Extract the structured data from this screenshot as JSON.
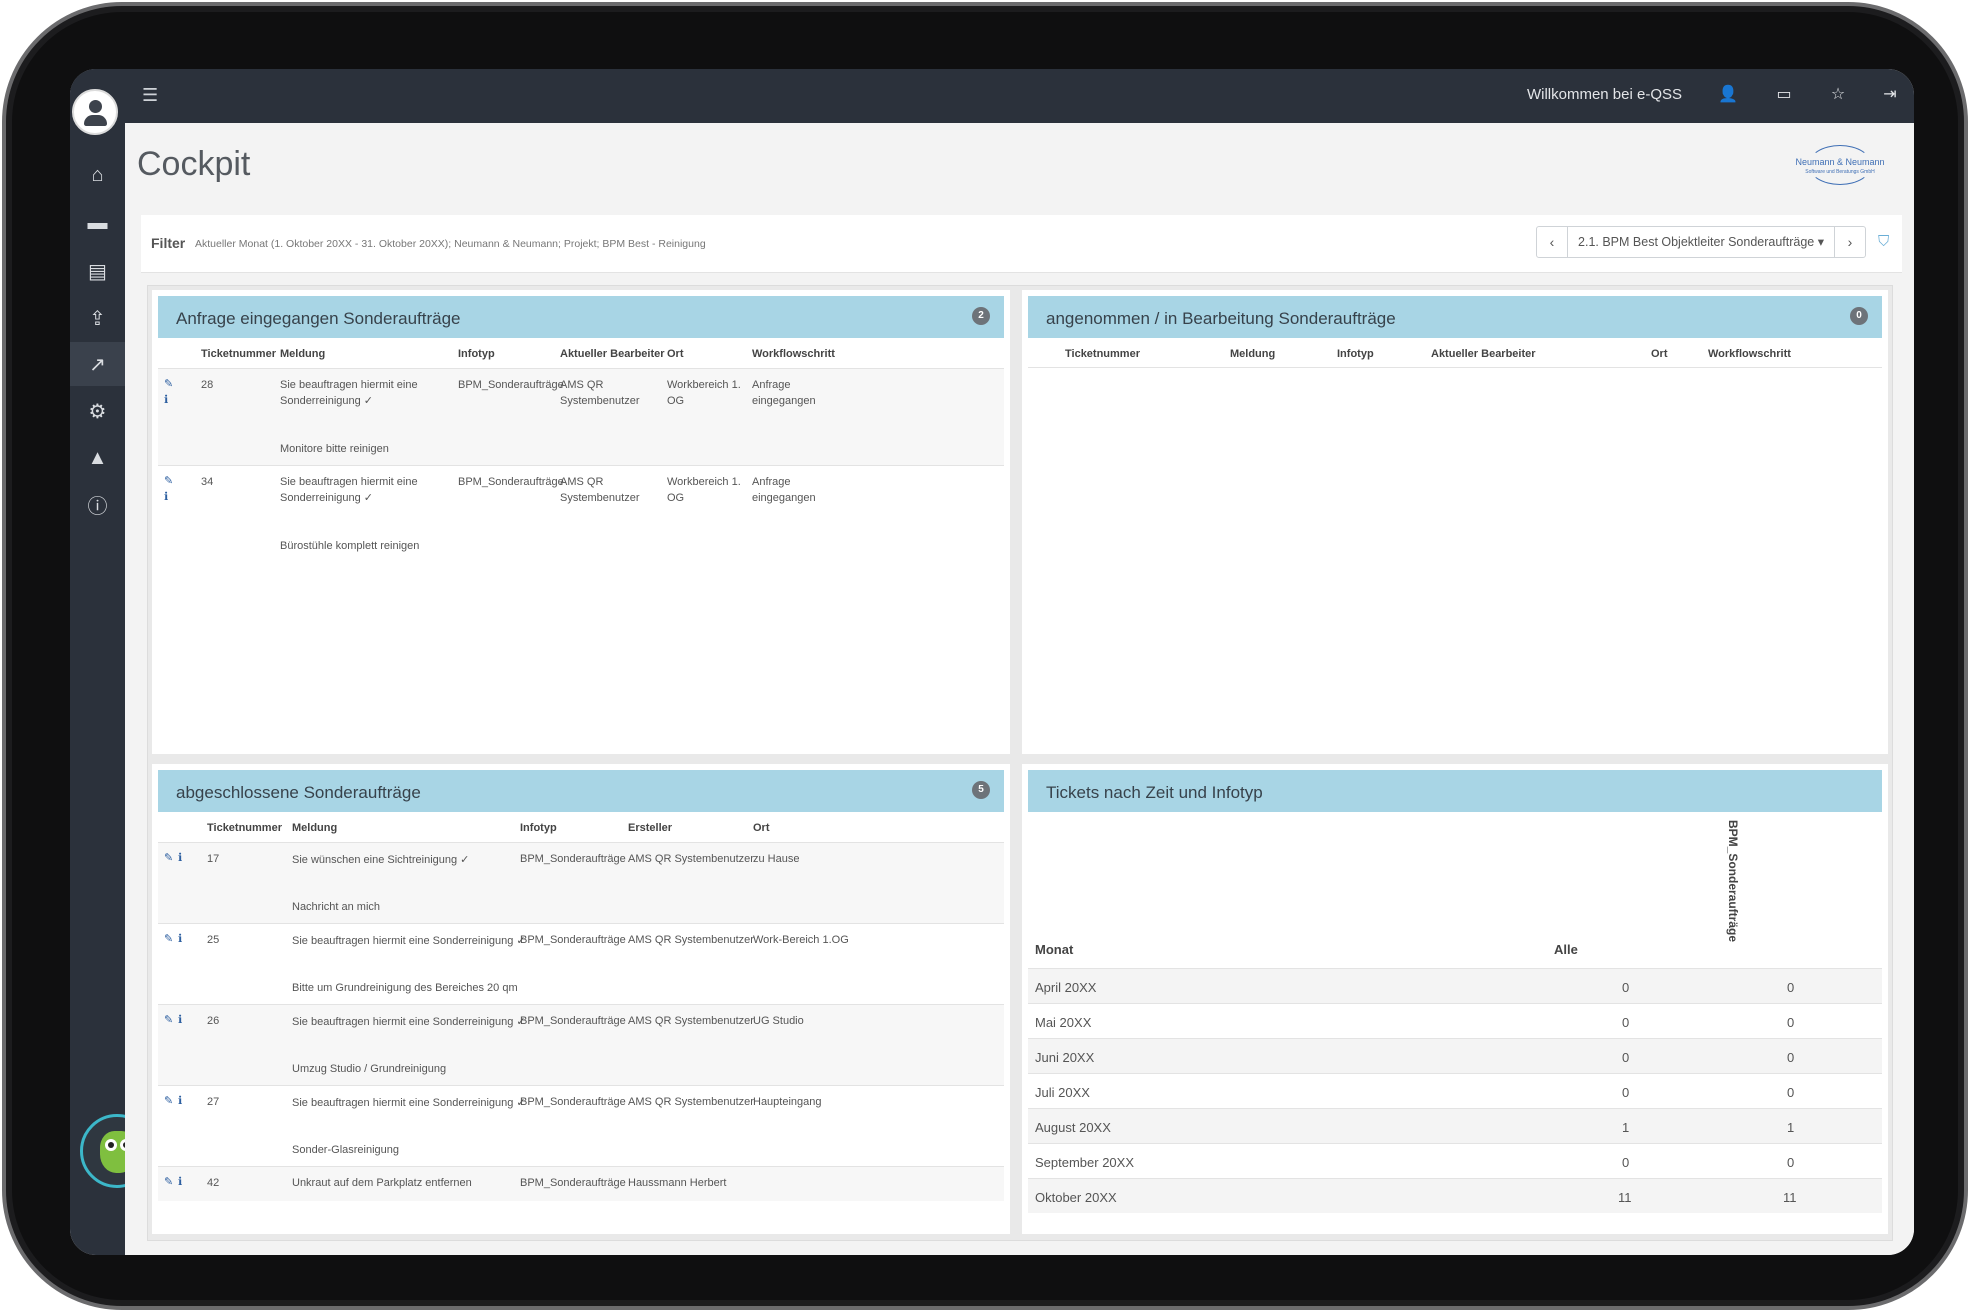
{
  "topbar": {
    "menu_icon": "hamburger-icon",
    "welcome": "Willkommen bei e-QSS",
    "icons": [
      "user-gear-icon",
      "card-icon",
      "star-icon",
      "logout-icon"
    ]
  },
  "sidebar": {
    "items": [
      "home-icon",
      "folder-open-icon",
      "ticket-icon",
      "upload-icon",
      "chart-line-icon",
      "users-gear-icon",
      "graduation-cap-icon",
      "info-icon"
    ],
    "active_index": 4
  },
  "page": {
    "title": "Cockpit",
    "logo_name": "Neumann & Neumann",
    "logo_sub": "Software und Beratungs GmbH"
  },
  "filter": {
    "label": "Filter",
    "text": "Aktueller Monat (1. Oktober 20XX - 31. Oktober 20XX);  Neumann & Neumann; Projekt; BPM Best - Reinigung",
    "selected_view": "2.1. BPM Best Objektleiter Sonderaufträge ▾"
  },
  "panels": {
    "incoming": {
      "title": "Anfrage eingegangen Sonderaufträge",
      "count": "2",
      "headers": [
        "Ticketnummer",
        "Meldung",
        "Infotyp",
        "Aktueller Bearbeiter",
        "Ort",
        "Workflowschritt"
      ],
      "rows": [
        {
          "ticket": "28",
          "meldung": "Sie beauftragen hiermit eine Sonderreinigung ✓",
          "note": "Monitore bitte reinigen",
          "infotyp": "BPM_Sonderaufträge",
          "bearbeiter": "AMS QR Systembenutzer",
          "ort": "Workbereich 1. OG",
          "schritt": "Anfrage eingegangen"
        },
        {
          "ticket": "34",
          "meldung": "Sie beauftragen hiermit eine Sonderreinigung ✓",
          "note": "Bürostühle komplett reinigen",
          "infotyp": "BPM_Sonderaufträge",
          "bearbeiter": "AMS QR Systembenutzer",
          "ort": "Workbereich 1. OG",
          "schritt": "Anfrage eingegangen"
        }
      ]
    },
    "accepted": {
      "title": "angenommen / in Bearbeitung Sonderaufträge",
      "count": "0",
      "headers": [
        "Ticketnummer",
        "Meldung",
        "Infotyp",
        "Aktueller Bearbeiter",
        "Ort",
        "Workflowschritt"
      ]
    },
    "closed": {
      "title": "abgeschlossene Sonderaufträge",
      "count": "5",
      "headers": [
        "Ticketnummer",
        "Meldung",
        "Infotyp",
        "Ersteller",
        "Ort"
      ],
      "rows": [
        {
          "ticket": "17",
          "meldung": "Sie wünschen eine Sichtreinigung ✓",
          "note": "Nachricht an mich",
          "infotyp": "BPM_Sonderaufträge",
          "ersteller": "AMS QR Systembenutzer",
          "ort": "zu Hause"
        },
        {
          "ticket": "25",
          "meldung": "Sie beauftragen hiermit eine Sonderreinigung ✓",
          "note": "Bitte um Grundreinigung des Bereiches 20 qm",
          "infotyp": "BPM_Sonderaufträge",
          "ersteller": "AMS QR Systembenutzer",
          "ort": "Work-Bereich 1.OG"
        },
        {
          "ticket": "26",
          "meldung": "Sie beauftragen hiermit eine Sonderreinigung ✓",
          "note": "Umzug Studio / Grundreinigung",
          "infotyp": "BPM_Sonderaufträge",
          "ersteller": "AMS QR Systembenutzer",
          "ort": "UG Studio"
        },
        {
          "ticket": "27",
          "meldung": "Sie beauftragen hiermit eine Sonderreinigung ✓",
          "note": "Sonder-Glasreinigung",
          "infotyp": "BPM_Sonderaufträge",
          "ersteller": "AMS QR Systembenutzer",
          "ort": "Haupteingang"
        },
        {
          "ticket": "42",
          "meldung": "Unkraut auf dem Parkplatz entfernen",
          "note": "",
          "infotyp": "BPM_Sonderaufträge",
          "ersteller": "Haussmann Herbert",
          "ort": ""
        }
      ]
    },
    "timeline": {
      "title": "Tickets nach Zeit und Infotyp",
      "col_month": "Monat",
      "col_all": "Alle",
      "col_type": "BPM_Sonderaufträge",
      "rows": [
        {
          "month": "April 20XX",
          "alle": "0",
          "bpm": "0"
        },
        {
          "month": "Mai 20XX",
          "alle": "0",
          "bpm": "0"
        },
        {
          "month": "Juni 20XX",
          "alle": "0",
          "bpm": "0"
        },
        {
          "month": "Juli 20XX",
          "alle": "0",
          "bpm": "0"
        },
        {
          "month": "August 20XX",
          "alle": "1",
          "bpm": "1"
        },
        {
          "month": "September 20XX",
          "alle": "0",
          "bpm": "0"
        },
        {
          "month": "Oktober 20XX",
          "alle": "11",
          "bpm": "11"
        }
      ]
    }
  },
  "icons": {
    "edit": "✎",
    "info": "ℹ"
  }
}
